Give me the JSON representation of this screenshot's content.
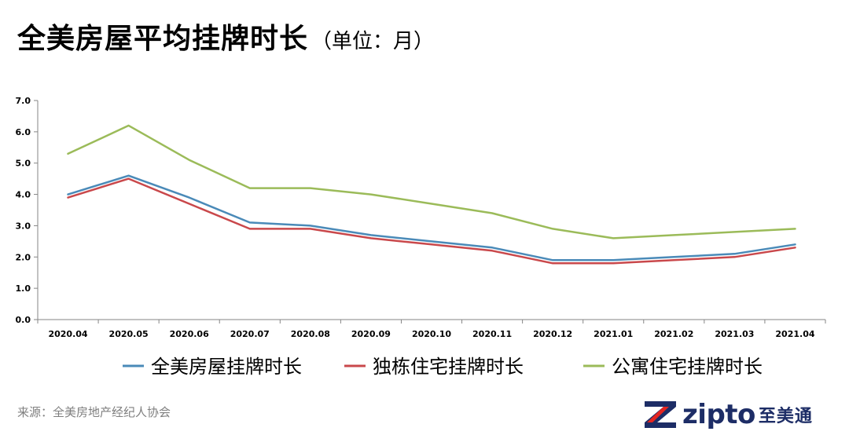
{
  "title": {
    "main": "全美房屋平均挂牌时长",
    "unit": "（单位：月）"
  },
  "source": "来源：全美房地产经纪人协会",
  "brand": {
    "name": "zipto",
    "name_cn": "至美通",
    "colors": {
      "navy": "#1d2d66",
      "red": "#e52520"
    }
  },
  "chart_data": {
    "type": "line",
    "categories": [
      "2020.04",
      "2020.05",
      "2020.06",
      "2020.07",
      "2020.08",
      "2020.09",
      "2020.10",
      "2020.11",
      "2020.12",
      "2021.01",
      "2021.02",
      "2021.03",
      "2021.04"
    ],
    "series": [
      {
        "name": "全美房屋挂牌时长",
        "color": "#4a8ab8",
        "values": [
          4.0,
          4.6,
          3.9,
          3.1,
          3.0,
          2.7,
          2.5,
          2.3,
          1.9,
          1.9,
          2.0,
          2.1,
          2.4
        ]
      },
      {
        "name": "独栋住宅挂牌时长",
        "color": "#c9484b",
        "values": [
          3.9,
          4.5,
          3.7,
          2.9,
          2.9,
          2.6,
          2.4,
          2.2,
          1.8,
          1.8,
          1.9,
          2.0,
          2.3
        ]
      },
      {
        "name": "公寓住宅挂牌时长",
        "color": "#9bbb59",
        "values": [
          5.3,
          6.2,
          5.1,
          4.2,
          4.2,
          4.0,
          3.7,
          3.4,
          2.9,
          2.6,
          2.7,
          2.8,
          2.9
        ]
      }
    ],
    "yticks": [
      "0.0",
      "1.0",
      "2.0",
      "3.0",
      "4.0",
      "5.0",
      "6.0",
      "7.0"
    ],
    "ylim": [
      0,
      7
    ],
    "grid": false,
    "legend_position": "bottom"
  }
}
